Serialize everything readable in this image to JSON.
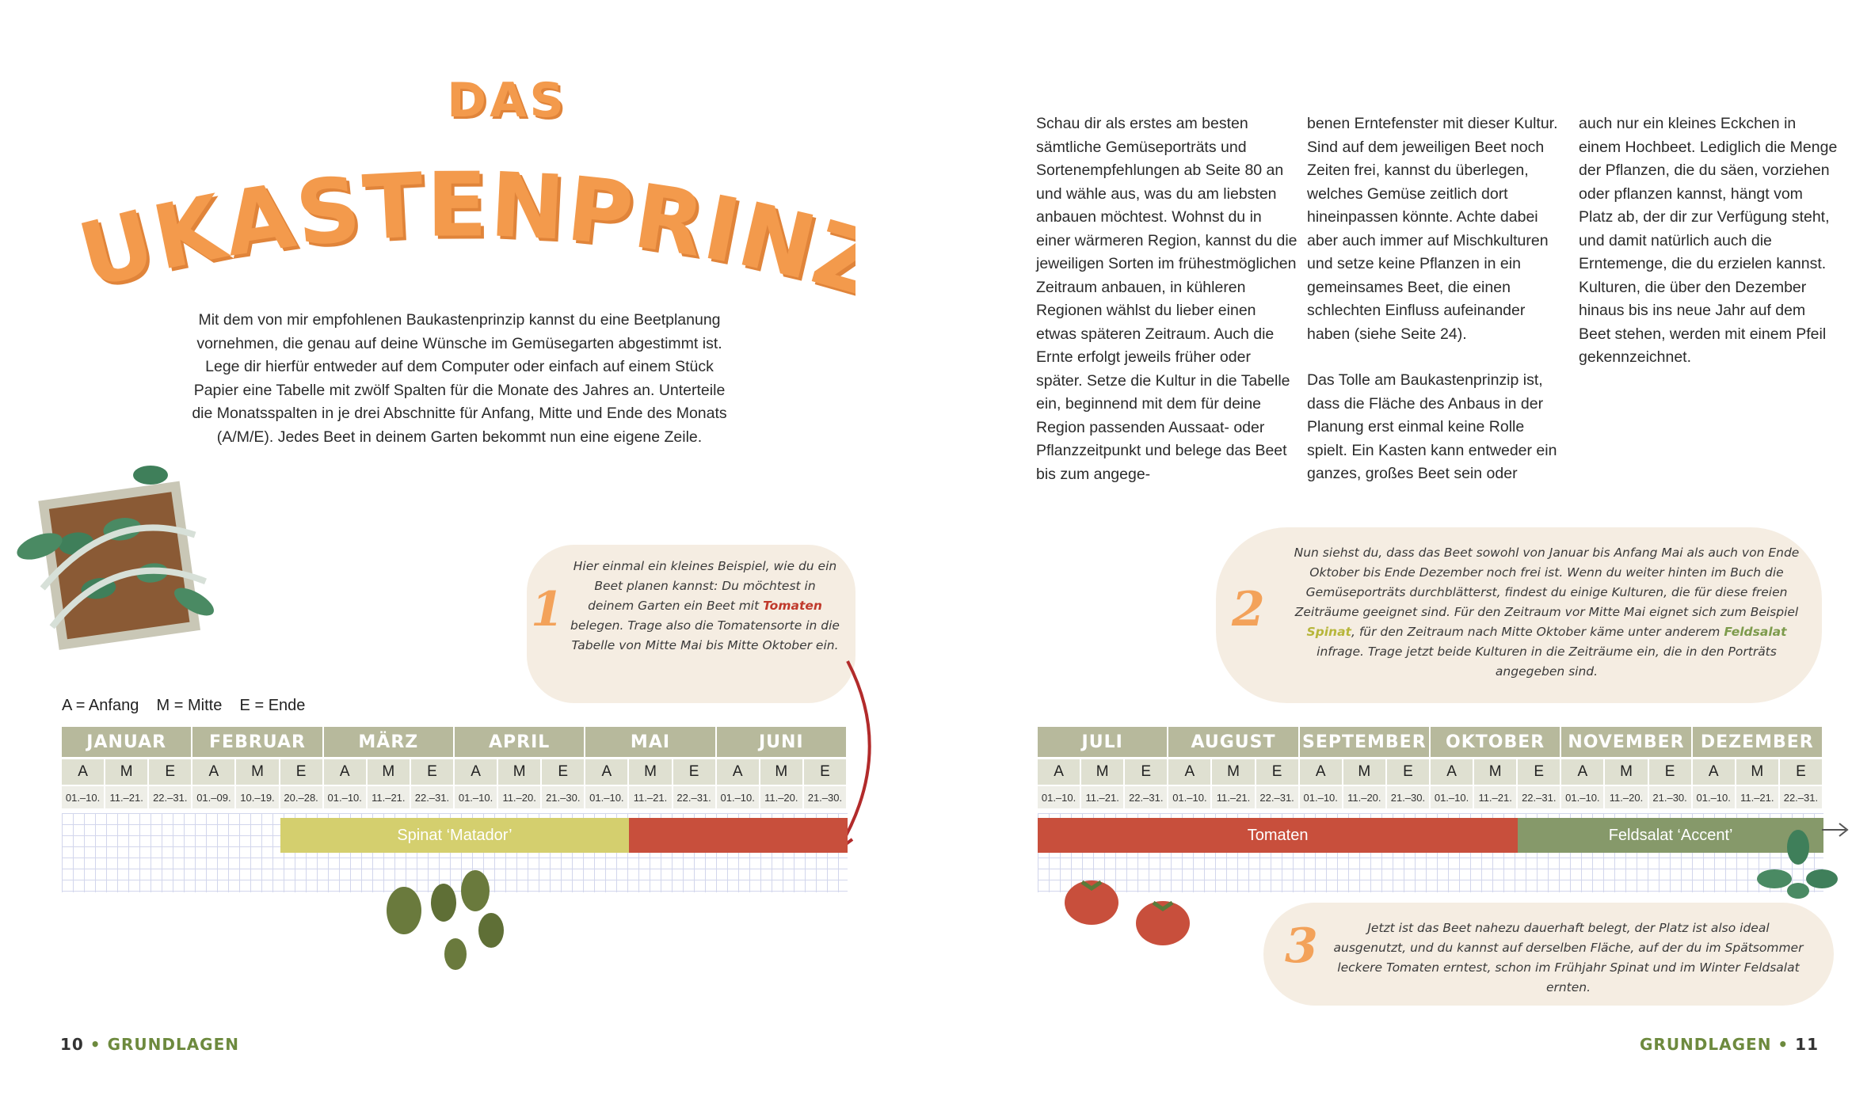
{
  "title": {
    "line1": "DAS",
    "line2": "BAUKASTENPRINZIP"
  },
  "intro": "Mit dem von mir empfohlenen Baukastenprinzip kannst du eine Beetplanung vornehmen, die genau auf deine Wünsche im Gemüsegarten abgestimmt ist. Lege dir hierfür entweder auf dem Computer oder einfach auf einem Stück Papier eine Tabelle mit zwölf Spalten für die Monate des Jahres an. Unterteile die Monatsspalten in je drei Abschnitte für Anfang, Mitte und Ende des Monats (A/M/E). Jedes Beet in deinem Garten bekommt nun eine eigene Zeile.",
  "columns": {
    "col1": "Schau dir als erstes am besten sämtliche Gemüseporträts und Sortenempfehlungen ab Seite 80 an und wähle aus, was du am liebsten anbauen möchtest. Wohnst du in einer wärmeren Region, kannst du die jeweiligen Sorten im frühestmöglichen Zeitraum anbauen, in kühleren Regionen wählst du lieber einen etwas späteren Zeitraum. Auch die Ernte erfolgt jeweils früher oder später. Setze die Kultur in die Tabelle ein, beginnend mit dem für deine Region passenden Aussaat- oder Pflanzzeitpunkt und belege das Beet bis zum angege-",
    "col2a": "benen Erntefenster mit dieser Kultur. Sind auf dem jeweiligen Beet noch Zeiten frei, kannst du überlegen, welches Gemüse zeitlich dort hineinpassen könnte. Achte dabei aber auch immer auf Mischkulturen und setze keine Pflanzen in ein gemeinsames Beet, die einen schlechten Einfluss aufeinander haben (siehe Seite 24).",
    "col2b": "Das Tolle am Baukastenprinzip ist, dass die Fläche des Anbaus in der Planung erst einmal keine Rolle spielt. Ein Kasten kann entweder ein ganzes, großes Beet sein oder",
    "col3": "auch nur ein kleines Eckchen in einem Hochbeet. Lediglich die Menge der Pflanzen, die du säen, vorziehen oder pflanzen kannst, hängt vom Platz ab, der dir zur Verfügung steht, und damit natürlich auch die Erntemenge, die du erzielen kannst. Kulturen, die über den Dezember hinaus bis ins neue Jahr auf dem Beet stehen, werden mit einem Pfeil gekennzeichnet."
  },
  "bubbles": {
    "b1": {
      "num": "1",
      "pre": "Hier einmal ein kleines Beispiel, wie du ein Beet planen kannst: Du möchtest in deinem Garten ein Beet mit ",
      "hl": "Tomaten",
      "post": " belegen. Trage also die Tomatensorte in die Tabelle von Mitte Mai bis Mitte Oktober ein."
    },
    "b2": {
      "num": "2",
      "pre": "Nun siehst du, dass das Beet sowohl von Januar bis Anfang Mai als auch von Ende Oktober bis Ende Dezember noch frei ist. Wenn du weiter hinten im Buch die Gemüseporträts durchblätterst, findest du einige Kulturen, die für diese freien Zeiträume geeignet sind. Für den Zeitraum vor Mitte Mai eignet sich zum Beispiel ",
      "hl1": "Spinat",
      "mid": ", für den Zeitraum nach Mitte Oktober käme unter anderem ",
      "hl2": "Feldsalat",
      "post": " infrage. Trage jetzt beide Kulturen in die Zeiträume ein, die in den Porträts angegeben sind."
    },
    "b3": {
      "num": "3",
      "text": "Jetzt ist das Beet nahezu dauerhaft belegt, der Platz ist also ideal ausgenutzt, und du kannst auf derselben Fläche, auf der du im Spätsommer leckere Tomaten erntest, schon im Frühjahr Spinat und im Winter Feldsalat ernten."
    }
  },
  "legend": "A = Anfang    M = Mitte    E = Ende",
  "table_left": {
    "months": [
      "JANUAR",
      "FEBRUAR",
      "MÄRZ",
      "APRIL",
      "MAI",
      "JUNI"
    ],
    "ame": [
      "A",
      "M",
      "E",
      "A",
      "M",
      "E",
      "A",
      "M",
      "E",
      "A",
      "M",
      "E",
      "A",
      "M",
      "E",
      "A",
      "M",
      "E"
    ],
    "dates": [
      "01.–10.",
      "11.–21.",
      "22.–31.",
      "01.–09.",
      "10.–19.",
      "20.–28.",
      "01.–10.",
      "11.–21.",
      "22.–31.",
      "01.–10.",
      "11.–20.",
      "21.–30.",
      "01.–10.",
      "11.–21.",
      "22.–31.",
      "01.–10.",
      "11.–20.",
      "21.–30."
    ],
    "bars": [
      {
        "label": "Spinat ‘Matador’",
        "start_slot": 5,
        "end_slot": 13,
        "color": "#d4cf6e"
      },
      {
        "label": "",
        "start_slot": 13,
        "end_slot": 18,
        "color": "#c84f3c"
      }
    ]
  },
  "table_right": {
    "months": [
      "JULI",
      "AUGUST",
      "SEPTEMBER",
      "OKTOBER",
      "NOVEMBER",
      "DEZEMBER"
    ],
    "ame": [
      "A",
      "M",
      "E",
      "A",
      "M",
      "E",
      "A",
      "M",
      "E",
      "A",
      "M",
      "E",
      "A",
      "M",
      "E",
      "A",
      "M",
      "E"
    ],
    "dates": [
      "01.–10.",
      "11.–21.",
      "22.–31.",
      "01.–10.",
      "11.–21.",
      "22.–31.",
      "01.–10.",
      "11.–20.",
      "21.–30.",
      "01.–10.",
      "11.–21.",
      "22.–31.",
      "01.–10.",
      "11.–20.",
      "21.–30.",
      "01.–10.",
      "11.–21.",
      "22.–31."
    ],
    "bars": [
      {
        "label": "Tomaten",
        "start_slot": 0,
        "end_slot": 11,
        "color": "#c84f3c"
      },
      {
        "label": "Feldsalat ‘Accent’",
        "start_slot": 11,
        "end_slot": 18,
        "color": "#86996a"
      }
    ]
  },
  "footer": {
    "left_num": "10",
    "left_label": "GRUNDLAGEN",
    "right_label": "GRUNDLAGEN",
    "right_num": "11"
  }
}
